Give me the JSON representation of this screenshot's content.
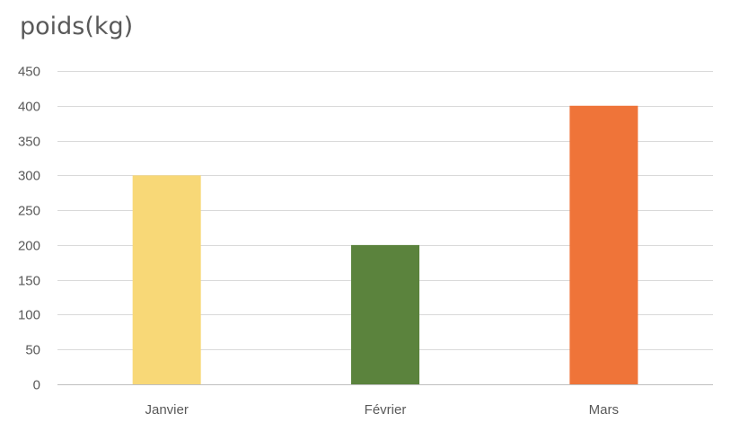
{
  "chart_data": {
    "type": "bar",
    "title": "poids(kg)",
    "xlabel": "",
    "ylabel": "",
    "categories": [
      "Janvier",
      "Février",
      "Mars"
    ],
    "values": [
      300,
      200,
      400
    ],
    "colors": [
      "#f8d877",
      "#5b833d",
      "#ef7439"
    ],
    "ylim": [
      0,
      450
    ],
    "yticks": [
      0,
      50,
      100,
      150,
      200,
      250,
      300,
      350,
      400,
      450
    ],
    "grid": true,
    "legend": "none"
  }
}
